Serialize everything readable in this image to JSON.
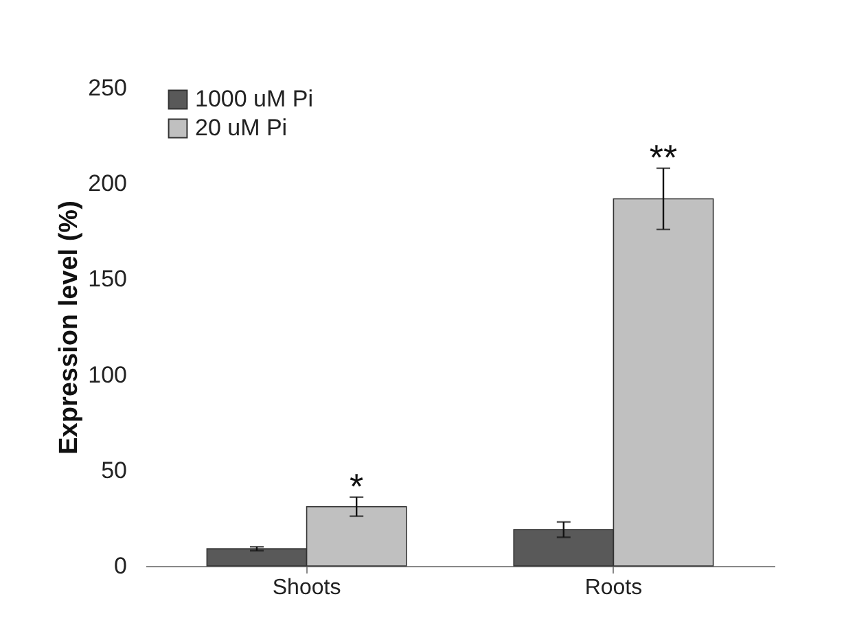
{
  "chart_data": {
    "type": "bar",
    "ylabel": "Expression level (%)",
    "categories": [
      "Shoots",
      "Roots"
    ],
    "series": [
      {
        "name": "1000 uM Pi",
        "color": "#595959",
        "values": [
          9,
          19
        ],
        "errors": [
          1,
          4
        ]
      },
      {
        "name": "20 uM Pi",
        "color": "#c0c0c0",
        "values": [
          31,
          192
        ],
        "errors": [
          5,
          16
        ]
      }
    ],
    "ylim": [
      0,
      250
    ],
    "yticks": [
      0,
      50,
      100,
      150,
      200,
      250
    ],
    "grid": false,
    "legend": "top left",
    "annotations": [
      "*",
      "**"
    ]
  }
}
